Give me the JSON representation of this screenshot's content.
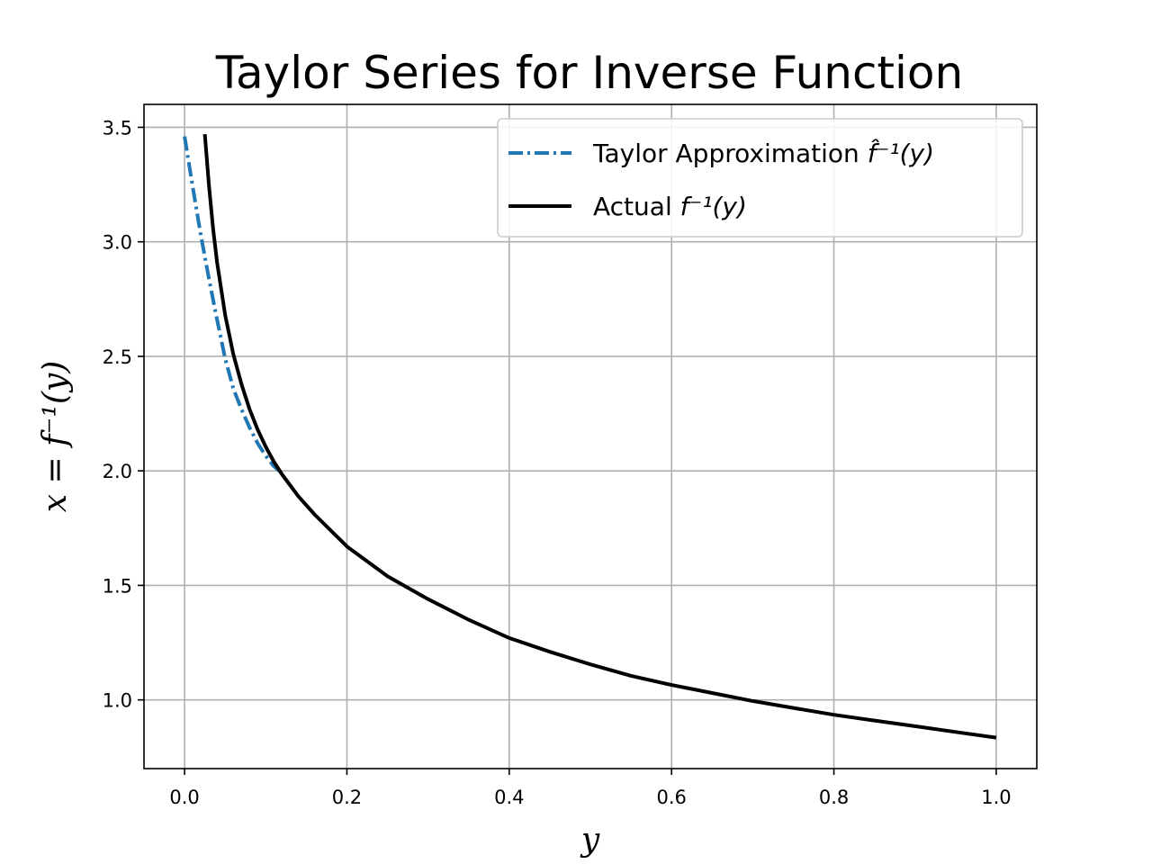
{
  "chart_data": {
    "type": "line",
    "title": "Taylor Series for Inverse Function",
    "xlabel": "y",
    "ylabel": "x = f⁻¹(y)",
    "xlim": [
      -0.05,
      1.05
    ],
    "ylim": [
      0.7,
      3.6
    ],
    "grid": true,
    "legend_position": "top-right",
    "x_ticks": [
      0.0,
      0.2,
      0.4,
      0.6,
      0.8,
      1.0
    ],
    "x_tick_labels": [
      "0.0",
      "0.2",
      "0.4",
      "0.6",
      "0.8",
      "1.0"
    ],
    "y_ticks": [
      1.0,
      1.5,
      2.0,
      2.5,
      3.0,
      3.5
    ],
    "y_tick_labels": [
      "1.0",
      "1.5",
      "2.0",
      "2.5",
      "3.0",
      "3.5"
    ],
    "series": [
      {
        "name": "Taylor Approximation f̂⁻¹(y)",
        "name_text": "Taylor Approximation ",
        "name_math": "f̂⁻¹(y)",
        "color": "#1f77b4",
        "line_style": "dash-dot",
        "x": [
          0.0,
          0.01,
          0.02,
          0.03,
          0.04,
          0.05,
          0.06,
          0.07,
          0.08,
          0.09,
          0.1,
          0.11,
          0.12
        ],
        "y": [
          3.46,
          3.24,
          3.03,
          2.84,
          2.66,
          2.49,
          2.36,
          2.27,
          2.19,
          2.12,
          2.065,
          2.02,
          1.99
        ]
      },
      {
        "name": "Actual f⁻¹(y)",
        "name_text": "Actual ",
        "name_math": "f⁻¹(y)",
        "color": "#000000",
        "line_style": "solid",
        "x": [
          0.025,
          0.03,
          0.035,
          0.04,
          0.05,
          0.06,
          0.07,
          0.08,
          0.09,
          0.1,
          0.11,
          0.12,
          0.14,
          0.16,
          0.18,
          0.2,
          0.25,
          0.3,
          0.35,
          0.4,
          0.45,
          0.5,
          0.55,
          0.6,
          0.65,
          0.7,
          0.75,
          0.8,
          0.85,
          0.9,
          0.95,
          1.0
        ],
        "y": [
          3.47,
          3.25,
          3.06,
          2.91,
          2.68,
          2.51,
          2.38,
          2.27,
          2.18,
          2.105,
          2.04,
          1.985,
          1.89,
          1.81,
          1.74,
          1.67,
          1.54,
          1.44,
          1.35,
          1.27,
          1.21,
          1.155,
          1.105,
          1.065,
          1.03,
          0.995,
          0.965,
          0.935,
          0.91,
          0.885,
          0.86,
          0.835
        ]
      }
    ]
  }
}
